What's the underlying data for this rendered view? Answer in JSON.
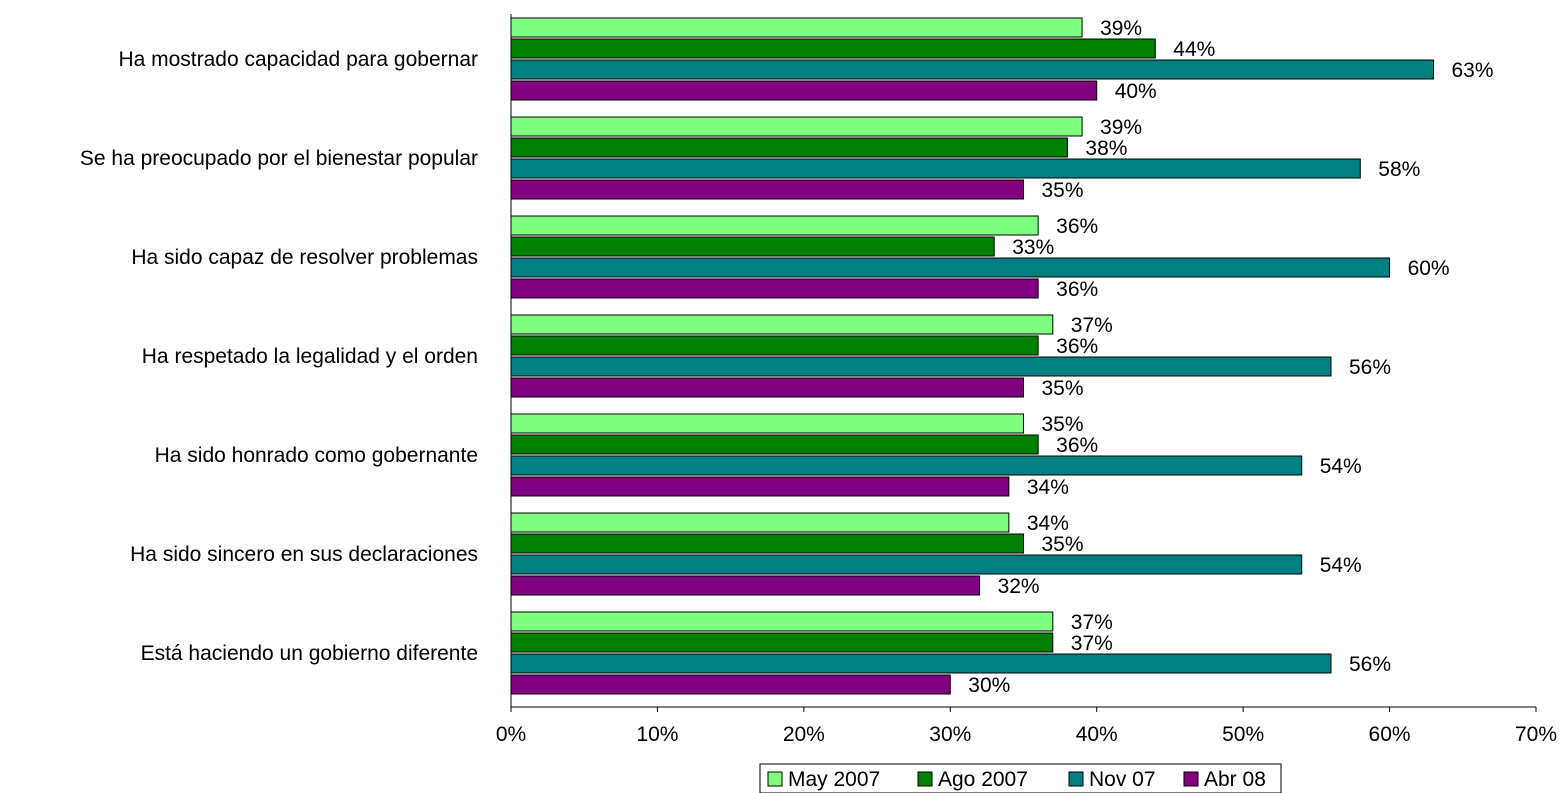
{
  "chart_data": {
    "type": "bar",
    "orientation": "horizontal",
    "categories": [
      "Ha mostrado capacidad para gobernar",
      "Se ha preocupado por el bienestar popular",
      "Ha sido capaz de resolver  problemas",
      "Ha respetado la legalidad y el orden",
      "Ha sido honrado como gobernante",
      "Ha sido sincero en sus declaraciones",
      "Está haciendo un gobierno diferente"
    ],
    "series": [
      {
        "name": "May 2007",
        "color": "#80ff80",
        "values": [
          39,
          39,
          36,
          37,
          35,
          34,
          37
        ]
      },
      {
        "name": "Ago 2007",
        "color": "#008000",
        "values": [
          44,
          38,
          33,
          36,
          36,
          35,
          37
        ]
      },
      {
        "name": "Nov 07",
        "color": "#008080",
        "values": [
          63,
          58,
          60,
          56,
          54,
          54,
          56
        ]
      },
      {
        "name": "Abr 08",
        "color": "#800080",
        "values": [
          40,
          35,
          36,
          35,
          34,
          32,
          30
        ]
      }
    ],
    "xlim": [
      0,
      70
    ],
    "xticks": [
      "0%",
      "10%",
      "20%",
      "30%",
      "40%",
      "50%",
      "60%",
      "70%"
    ],
    "value_suffix": "%",
    "legend_position": "bottom",
    "grid": false
  }
}
